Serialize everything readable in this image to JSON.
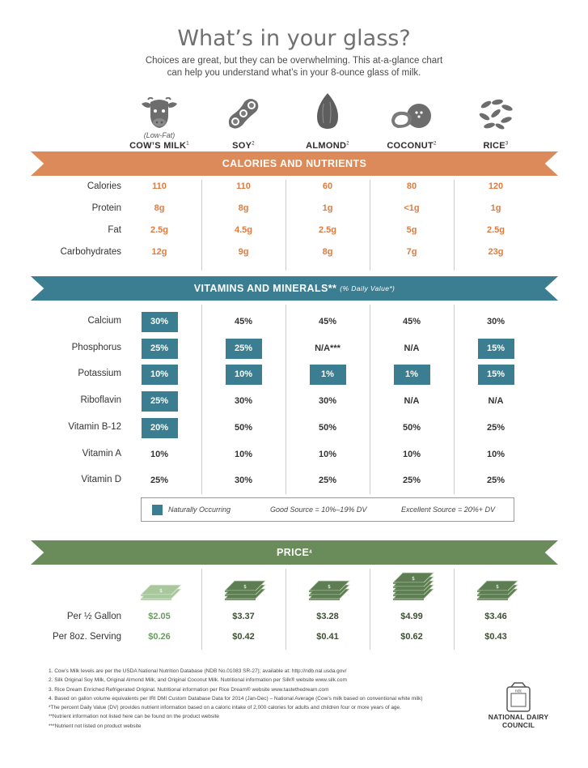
{
  "title": "What’s in your glass?",
  "subtitle_line1": "Choices are great, but they can be overwhelming. This at-a-glance chart",
  "subtitle_line2": "can help you understand what’s in your 8-ounce glass of milk.",
  "milks": [
    {
      "qualifier": "(Low-Fat)",
      "name": "COW’S MILK",
      "ref": "1",
      "icon": "cow-icon"
    },
    {
      "qualifier": "",
      "name": "SOY",
      "ref": "2",
      "icon": "soybean-icon"
    },
    {
      "qualifier": "",
      "name": "ALMOND",
      "ref": "2",
      "icon": "almond-icon"
    },
    {
      "qualifier": "",
      "name": "COCONUT",
      "ref": "2",
      "icon": "coconut-icon"
    },
    {
      "qualifier": "",
      "name": "RICE",
      "ref": "3",
      "icon": "rice-icon"
    }
  ],
  "nutrients": {
    "banner": "CALORIES AND NUTRIENTS",
    "banner_color": "#dd8a5a",
    "rows": [
      {
        "label": "Calories",
        "values": [
          "110",
          "110",
          "60",
          "80",
          "120"
        ]
      },
      {
        "label": "Protein",
        "values": [
          "8g",
          "8g",
          "1g",
          "<1g",
          "1g"
        ]
      },
      {
        "label": "Fat",
        "values": [
          "2.5g",
          "4.5g",
          "2.5g",
          "5g",
          "2.5g"
        ]
      },
      {
        "label": "Carbohydrates",
        "values": [
          "12g",
          "9g",
          "8g",
          "7g",
          "23g"
        ]
      }
    ]
  },
  "vitamins": {
    "banner": "VITAMINS AND MINERALS**",
    "banner_sub": "(% Daily Value*)",
    "banner_color": "#3b7e91",
    "rows": [
      {
        "label": "Calcium",
        "values": [
          "30%",
          "45%",
          "45%",
          "45%",
          "30%"
        ],
        "natural": [
          true,
          false,
          false,
          false,
          false
        ]
      },
      {
        "label": "Phosphorus",
        "values": [
          "25%",
          "25%",
          "N/A***",
          "N/A",
          "15%"
        ],
        "natural": [
          true,
          true,
          false,
          false,
          true
        ]
      },
      {
        "label": "Potassium",
        "values": [
          "10%",
          "10%",
          "1%",
          "1%",
          "15%"
        ],
        "natural": [
          true,
          true,
          true,
          true,
          true
        ]
      },
      {
        "label": "Riboflavin",
        "values": [
          "25%",
          "30%",
          "30%",
          "N/A",
          "N/A"
        ],
        "natural": [
          true,
          false,
          false,
          false,
          false
        ]
      },
      {
        "label": "Vitamin B-12",
        "values": [
          "20%",
          "50%",
          "50%",
          "50%",
          "25%"
        ],
        "natural": [
          true,
          false,
          false,
          false,
          false
        ]
      },
      {
        "label": "Vitamin A",
        "values": [
          "10%",
          "10%",
          "10%",
          "10%",
          "10%"
        ],
        "natural": [
          false,
          false,
          false,
          false,
          false
        ]
      },
      {
        "label": "Vitamin D",
        "values": [
          "25%",
          "30%",
          "25%",
          "25%",
          "25%"
        ],
        "natural": [
          false,
          false,
          false,
          false,
          false
        ]
      }
    ]
  },
  "legend": {
    "natural": "Naturally Occurring",
    "good": "Good Source = 10%–19% DV",
    "excellent": "Excellent Source = 20%+ DV"
  },
  "price": {
    "banner": "PRICE",
    "ref": "4",
    "banner_color": "#6a8c5a",
    "money_stacks": [
      2,
      3,
      3,
      5,
      3
    ],
    "rows": [
      {
        "label": "Per ½ Gallon",
        "values": [
          "$2.05",
          "$3.37",
          "$3.28",
          "$4.99",
          "$3.46"
        ]
      },
      {
        "label": "Per 8oz. Serving",
        "values": [
          "$0.26",
          "$0.42",
          "$0.41",
          "$0.62",
          "$0.43"
        ]
      }
    ]
  },
  "footnotes": [
    "1. Cow’s Milk levels are per the USDA National Nutrition Database (NDB No.01083 SR-27); available at: http://ndb.nal.usda.gov/",
    "2. Silk Original Soy Milk, Original Almond Milk, and Original Coconut Milk. Nutritional information per Silk® website www.silk.com",
    "3. Rice Dream Enriched Refrigerated Original. Nutritional information per Rice Dream® website www.tastethedream.com",
    "4. Based on gallon volume equivalents per IRI DMI Custom Database Data for 2014 (Jan-Dec) – National Average (Cow’s milk based on conventional white milk)",
    "*The percent Daily Value (DV) provides nutrient information based on a caloric intake of 2,000 calories for adults and children four or more years of age.",
    "**Nutrient information not listed here can be found on the product website",
    "***Nutrient not listed on product website"
  ],
  "logo": {
    "mark": "ndc",
    "line1": "NATIONAL DAIRY",
    "line2": "COUNCIL",
    "icon": "ndc-logo-icon"
  }
}
